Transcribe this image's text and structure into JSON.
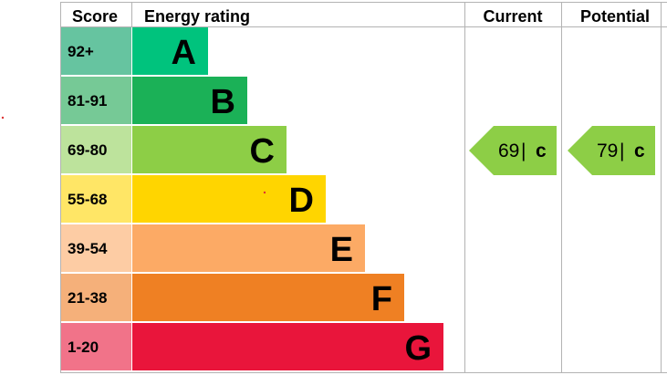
{
  "chart_data": {
    "type": "table",
    "headers": {
      "score": "Score",
      "rating": "Energy rating",
      "current": "Current",
      "potential": "Potential"
    },
    "bands": [
      {
        "letter": "A",
        "range": "92+",
        "color": "#00c37d",
        "score_color": "#66c4a0"
      },
      {
        "letter": "B",
        "range": "81-91",
        "color": "#1bb157",
        "score_color": "#76c996"
      },
      {
        "letter": "C",
        "range": "69-80",
        "color": "#8dce46",
        "score_color": "#bde39c"
      },
      {
        "letter": "D",
        "range": "55-68",
        "color": "#ffd500",
        "score_color": "#ffe666"
      },
      {
        "letter": "E",
        "range": "39-54",
        "color": "#fcaa65",
        "score_color": "#fdcca4"
      },
      {
        "letter": "F",
        "range": "21-38",
        "color": "#ef8023",
        "score_color": "#f5b07a"
      },
      {
        "letter": "G",
        "range": "1-20",
        "color": "#e9153b",
        "score_color": "#f17389"
      }
    ],
    "current": {
      "value": 69,
      "separator": "|",
      "letter": "c",
      "band_index": 2,
      "color": "#8dce46"
    },
    "potential": {
      "value": 79,
      "separator": "|",
      "letter": "c",
      "band_index": 2,
      "color": "#8dce46"
    }
  }
}
